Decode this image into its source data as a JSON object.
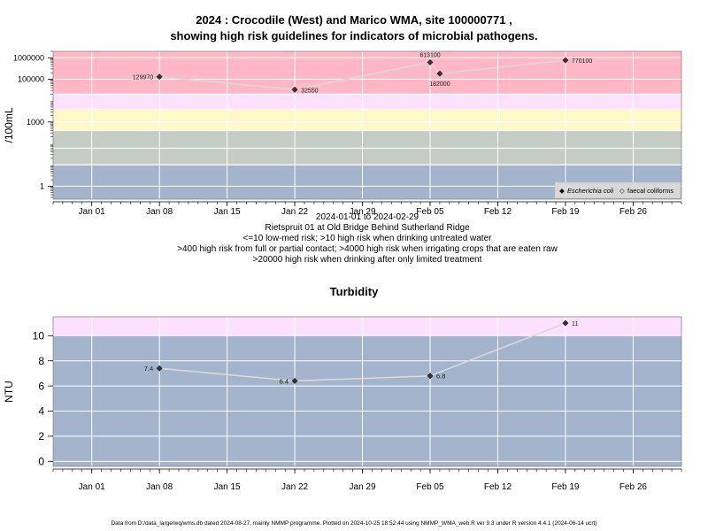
{
  "chart_data": [
    {
      "type": "line",
      "title_line1": "2024 : Crocodile (West) and Marico WMA, site 100000771 ,",
      "title_line2": "showing high risk guidelines for indicators of microbial pathogens.",
      "ylabel": "/100mL",
      "yscale": "log",
      "ylim": [
        0.25,
        2000000
      ],
      "xlim": [
        "2023-12-28",
        "2024-03-02"
      ],
      "y_ticks": [
        {
          "v": 1,
          "label": "1"
        },
        {
          "v": 1000,
          "label": "1000"
        },
        {
          "v": 100000,
          "label": "100000"
        },
        {
          "v": 1000000,
          "label": "1000000"
        }
      ],
      "bands": [
        {
          "from": 0.25,
          "to": 10,
          "color": "#a3b4cc"
        },
        {
          "from": 10,
          "to": 60,
          "color": "#c5cbc5"
        },
        {
          "from": 60,
          "to": 400,
          "color": "#c5cbc5"
        },
        {
          "from": 400,
          "to": 4000,
          "color": "#fff8c8"
        },
        {
          "from": 4000,
          "to": 20000,
          "color": "#fde0fd"
        },
        {
          "from": 20000,
          "to": 2000000,
          "color": "#ffb7c5"
        }
      ],
      "band_lines": [
        10,
        60,
        400,
        4000,
        20000
      ],
      "series": [
        {
          "name": "Escherichia coli",
          "color": "#d9d9d9",
          "points": [
            {
              "x": "2024-01-08",
              "y": 129970,
              "label": "129970",
              "anchor": "left"
            },
            {
              "x": "2024-01-22",
              "y": 32550,
              "label": "32550",
              "anchor": "right"
            },
            {
              "x": "2024-02-05",
              "y": 613100,
              "label": "613100",
              "anchor": "above"
            },
            {
              "x": "2024-02-06",
              "y": 182000,
              "label": "182000",
              "anchor": "below"
            },
            {
              "x": "2024-02-19",
              "y": 770100,
              "label": "770100",
              "anchor": "right"
            }
          ]
        }
      ],
      "legend": {
        "position": "bottom-right",
        "entries": [
          {
            "marker": "◆",
            "label": "Escherichia coli",
            "italic": true
          },
          {
            "marker": "◇",
            "label": "faecal coliforms",
            "italic": false
          }
        ]
      },
      "subtitle_lines": [
        "2024-01-01 to 2024-02-29",
        "Rietspruit 01 at Old Bridge Behind Sutherland Ridge",
        "<=10 low-med risk; >10 high risk when drinking untreated water",
        ">400 high risk from full or partial contact; >4000 high risk when irrigating crops that are eaten raw",
        ">20000 high risk when drinking after only limited treatment"
      ]
    },
    {
      "type": "line",
      "title": "Turbidity",
      "ylabel": "NTU",
      "ylim": [
        -0.4,
        11.5
      ],
      "xlim": [
        "2023-12-28",
        "2024-03-02"
      ],
      "y_ticks": [
        {
          "v": 0,
          "label": "0"
        },
        {
          "v": 2,
          "label": "2"
        },
        {
          "v": 4,
          "label": "4"
        },
        {
          "v": 6,
          "label": "6"
        },
        {
          "v": 8,
          "label": "8"
        },
        {
          "v": 10,
          "label": "10"
        }
      ],
      "bands": [
        {
          "from": -0.4,
          "to": 10,
          "color": "#a3b4cc"
        },
        {
          "from": 10,
          "to": 11.5,
          "color": "#fde0fd"
        }
      ],
      "band_lines": [],
      "series": [
        {
          "name": "",
          "color": "#d9d9d9",
          "points": [
            {
              "x": "2024-01-08",
              "y": 7.4,
              "label": "7.4",
              "anchor": "left"
            },
            {
              "x": "2024-01-22",
              "y": 6.4,
              "label": "6.4",
              "anchor": "left"
            },
            {
              "x": "2024-02-05",
              "y": 6.8,
              "label": "6.8",
              "anchor": "right"
            },
            {
              "x": "2024-02-19",
              "y": 11,
              "label": "11",
              "anchor": "right"
            }
          ]
        }
      ]
    }
  ],
  "x_axis": {
    "ticks": [
      {
        "date": "2024-01-01",
        "label": "Jan 01"
      },
      {
        "date": "2024-01-08",
        "label": "Jan 08"
      },
      {
        "date": "2024-01-15",
        "label": "Jan 15"
      },
      {
        "date": "2024-01-22",
        "label": "Jan 22"
      },
      {
        "date": "2024-01-29",
        "label": "Jan 29"
      },
      {
        "date": "2024-02-05",
        "label": "Feb 05"
      },
      {
        "date": "2024-02-12",
        "label": "Feb 12"
      },
      {
        "date": "2024-02-19",
        "label": "Feb 19"
      },
      {
        "date": "2024-02-26",
        "label": "Feb 26"
      }
    ]
  },
  "footer": "Data from D:/data_large/wq/wms.db dated 2024-08-27, mainly NMMP programme. Plotted on 2024-10-25 18:52:44 using NMMP_WMA_web.R ver 9.3 under R version 4.4.1 (2024-06-14 ucrt)"
}
